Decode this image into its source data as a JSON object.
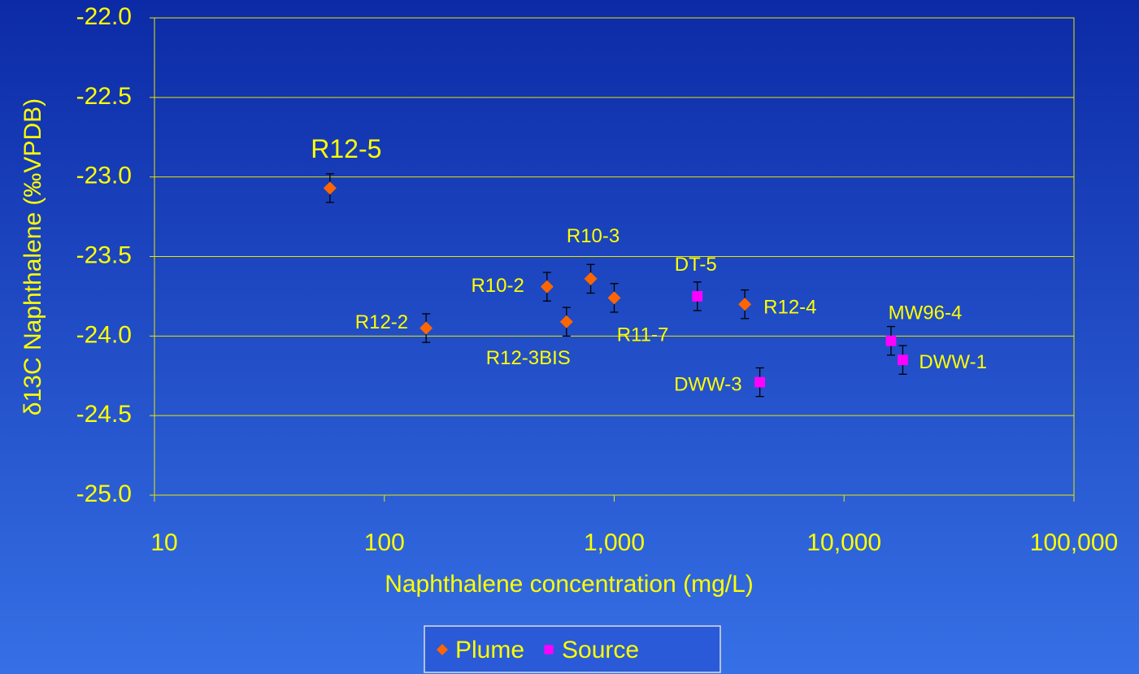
{
  "chart_data": {
    "type": "scatter",
    "xlabel": "Naphthalene concentration (mg/L)",
    "ylabel": "δ13C Naphthalene (‰VPDB)",
    "xscale": "log",
    "xlim": [
      10,
      100000
    ],
    "xticks": [
      10,
      100,
      {
        "value": 1000,
        "label": "1,000"
      },
      {
        "value": 10000,
        "label": "10,000"
      },
      {
        "value": 100000,
        "label": "100,000"
      }
    ],
    "ylim": [
      -25,
      -22
    ],
    "yticks": [
      {
        "value": -22,
        "label": "-22.0"
      },
      {
        "value": -22.5,
        "label": "-22.5"
      },
      {
        "value": -23,
        "label": "-23.0"
      },
      {
        "value": -23.5,
        "label": "-23.5"
      },
      {
        "value": -24,
        "label": "-24.0"
      },
      {
        "value": -24.5,
        "label": "-24.5"
      },
      {
        "value": -25,
        "label": "-25.0"
      }
    ],
    "grid": true,
    "legend": "bottom",
    "series": [
      {
        "name": "Plume",
        "color": "#ff6600",
        "marker": "diamond",
        "point_labels": [
          "R12-5",
          "R12-2",
          "R10-2",
          "R12-3BIS",
          "R10-3",
          "R11-7",
          "R12-4"
        ],
        "x": [
          58,
          152,
          510,
          620,
          790,
          1000,
          3700
        ],
        "values": [
          -23.07,
          -23.95,
          -23.69,
          -23.91,
          -23.64,
          -23.76,
          -23.8
        ],
        "errors": [
          0.09,
          0.09,
          0.09,
          0.09,
          0.09,
          0.09,
          0.09
        ]
      },
      {
        "name": "Source",
        "color": "#ff00ff",
        "marker": "square",
        "point_labels": [
          "DT-5",
          "DWW-3",
          "MW96-4",
          "DWW-1"
        ],
        "x": [
          2300,
          4300,
          16000,
          18000
        ],
        "values": [
          -23.75,
          -24.29,
          -24.03,
          -24.15
        ],
        "errors": [
          0.09,
          0.09,
          0.09,
          0.09
        ]
      }
    ]
  }
}
